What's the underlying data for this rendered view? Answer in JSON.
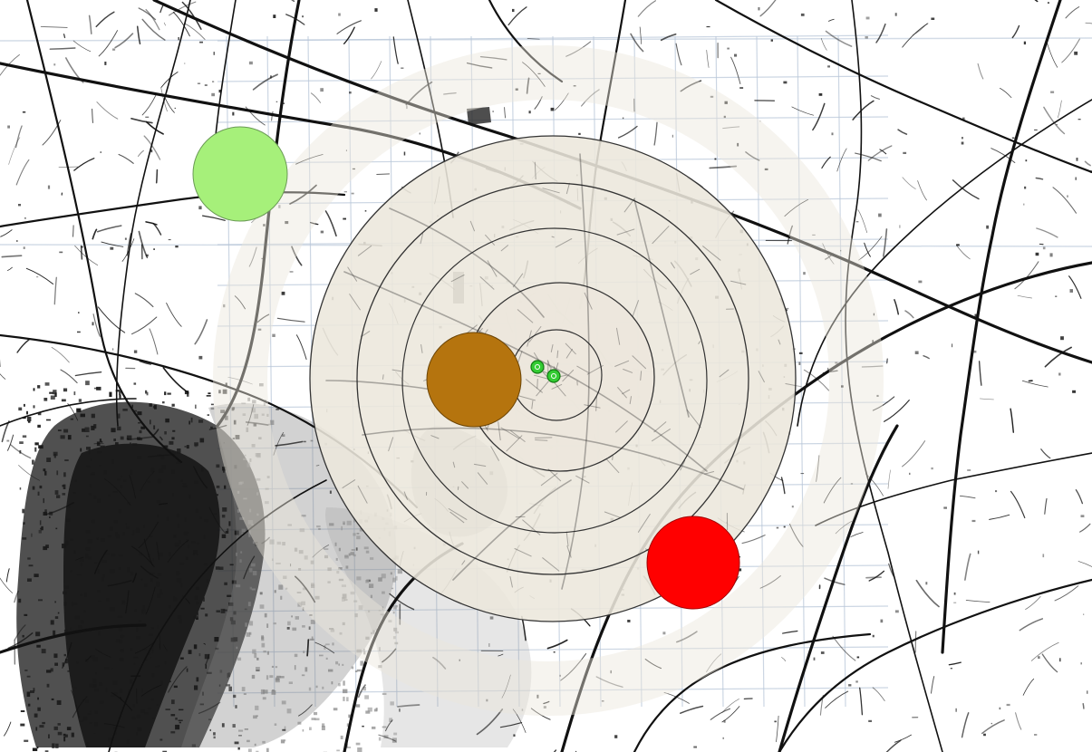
{
  "map": {
    "kind": "topographic-street-map",
    "base_colors": {
      "background": "#ffffff",
      "roads": "#111111",
      "urban_dense": "#1a1a1a",
      "urban_faded": "#8a8a8a",
      "grid": "#b7c6d8"
    },
    "zones": {
      "fill": "#ece7dc",
      "stroke": "#333333",
      "outer_ring_opacity": 0.55,
      "ring_count": 5
    },
    "markers": [
      {
        "name": "green-marker",
        "color": "#a6f07a"
      },
      {
        "name": "brown-marker",
        "color": "#b5740e"
      },
      {
        "name": "red-marker",
        "color": "#ff0000"
      },
      {
        "name": "small-green-marker",
        "color": "#33cc33"
      },
      {
        "name": "small-green-marker",
        "color": "#33cc33"
      }
    ]
  }
}
